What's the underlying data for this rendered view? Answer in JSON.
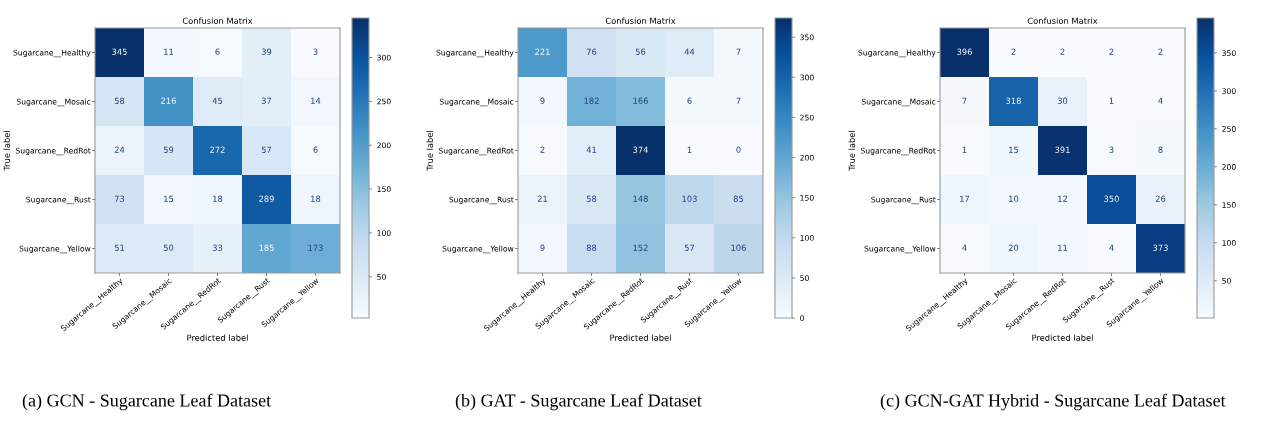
{
  "chart_data": [
    {
      "type": "heatmap",
      "title": "Confusion Matrix",
      "xlabel": "Predicted label",
      "ylabel": "True label",
      "categories": [
        "Sugarcane__Healthy",
        "Sugarcane__Mosaic",
        "Sugarcane__RedRot",
        "Sugarcane__Rust",
        "Sugarcane__Yellow"
      ],
      "y_categories": [
        "Sugarcane__Healthy",
        "Sugarcane__Mosaic",
        "Sugarcane__RedRot",
        "Sugarcane__Rust",
        "Sugarcane__Yellow"
      ],
      "cells": [
        [
          345,
          11,
          6,
          39,
          3
        ],
        [
          58,
          216,
          45,
          37,
          14
        ],
        [
          24,
          59,
          272,
          57,
          6
        ],
        [
          73,
          15,
          18,
          289,
          18
        ],
        [
          51,
          50,
          33,
          185,
          173
        ]
      ],
      "data_labels": true,
      "clim": [
        3,
        345
      ],
      "cticks": [
        50,
        100,
        150,
        200,
        250,
        300
      ],
      "annotations": [
        "(a) GCN - Sugarcane Leaf Dataset"
      ]
    },
    {
      "type": "heatmap",
      "title": "Confusion Matrix",
      "xlabel": "Predicted label",
      "ylabel": "True label",
      "categories": [
        "Sugarcane__Healthy",
        "Sugarcane__Mosaic",
        "Sugarcane__RedRot",
        "Sugarcane__Rust",
        "Sugarcane__Yellow"
      ],
      "y_categories": [
        "Sugarcane__Healthy",
        "Sugarcane__Mosaic",
        "Sugarcane__RedRot",
        "Sugarcane__Rust",
        "Sugarcane__Yellow"
      ],
      "cells": [
        [
          221,
          76,
          56,
          44,
          7
        ],
        [
          9,
          182,
          166,
          6,
          7
        ],
        [
          2,
          41,
          374,
          1,
          0
        ],
        [
          21,
          58,
          148,
          103,
          85
        ],
        [
          9,
          88,
          152,
          57,
          106
        ]
      ],
      "data_labels": true,
      "clim": [
        0,
        374
      ],
      "cticks": [
        0,
        50,
        100,
        150,
        200,
        250,
        300,
        350
      ],
      "annotations": [
        "(b) GAT - Sugarcane Leaf Dataset"
      ]
    },
    {
      "type": "heatmap",
      "title": "Confusion Matrix",
      "xlabel": "Predicted label",
      "ylabel": "True label",
      "categories": [
        "Sugarcane__Healthy",
        "Sugarcane__Mosaic",
        "Sugarcane__RedRot",
        "Sugarcane__Rust",
        "Sugarcane__Yellow"
      ],
      "y_categories": [
        "Sugarcane__Healthy",
        "Sugarcane__Mosaic",
        "Sugarcane__RedRot",
        "Sugarcane__Rust",
        "Sugarcane__Yellow"
      ],
      "cells": [
        [
          396,
          2,
          2,
          2,
          2
        ],
        [
          7,
          318,
          30,
          1,
          4
        ],
        [
          1,
          15,
          391,
          3,
          8
        ],
        [
          17,
          10,
          12,
          350,
          26
        ],
        [
          4,
          20,
          11,
          4,
          373
        ]
      ],
      "data_labels": true,
      "clim": [
        1,
        396
      ],
      "cticks": [
        50,
        100,
        150,
        200,
        250,
        300,
        350
      ],
      "annotations": [
        "(c) GCN-GAT Hybrid - Sugarcane Leaf Dataset"
      ]
    }
  ]
}
